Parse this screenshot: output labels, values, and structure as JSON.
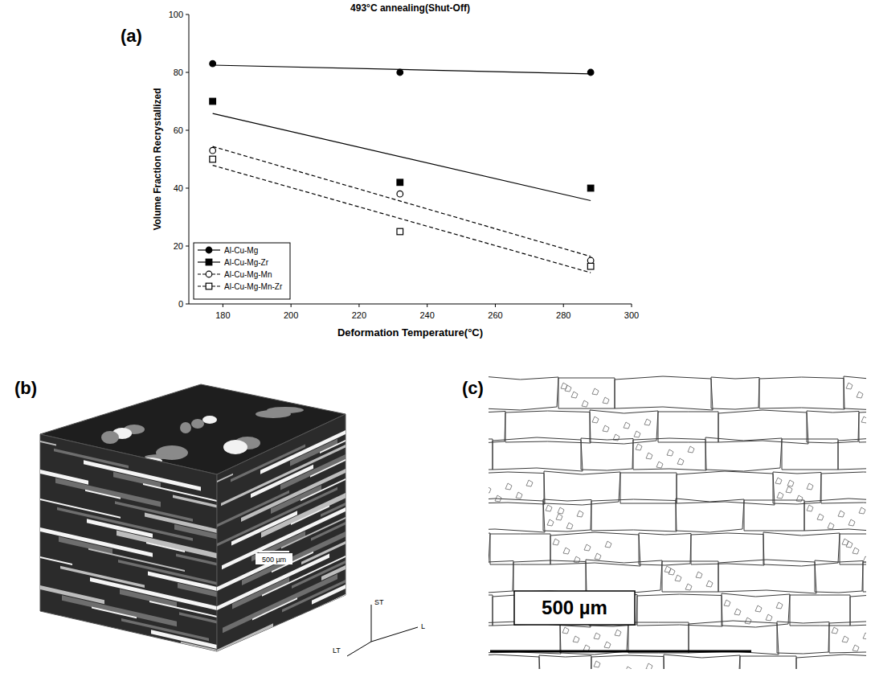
{
  "chart_data": {
    "type": "scatter",
    "title": "493°C annealing(Shut-Off)",
    "x_label": "Deformation Temperature(°C)",
    "y_label": "Volume Fraction Recrystallized",
    "x": [
      177,
      232,
      288
    ],
    "xlim": [
      170,
      300
    ],
    "xticks": [
      180,
      200,
      220,
      240,
      260,
      280,
      300
    ],
    "ylim": [
      0,
      100
    ],
    "yticks": [
      0,
      20,
      40,
      60,
      80,
      100
    ],
    "grid": false,
    "legend": "lower left",
    "series": [
      {
        "name": "Al-Cu-Mg",
        "color": "#000000",
        "marker": "filled-circle",
        "line_style": "solid",
        "values": [
          83,
          80,
          80
        ],
        "fit": [
          82.5,
          79.5
        ]
      },
      {
        "name": "Al-Cu-Mg-Zr",
        "color": "#000000",
        "marker": "filled-square",
        "line_style": "solid",
        "values": [
          70,
          42,
          40
        ],
        "fit": [
          65.8,
          35.7
        ]
      },
      {
        "name": "Al-Cu-Mg-Mn",
        "color": "#000000",
        "marker": "open-circle",
        "line_style": "dashed",
        "values": [
          53,
          38,
          15
        ],
        "fit": [
          54.4,
          16.4
        ]
      },
      {
        "name": "Al-Cu-Mg-Mn-Zr",
        "color": "#000000",
        "marker": "open-square",
        "line_style": "dashed",
        "values": [
          50,
          25,
          13
        ],
        "fit": [
          47.9,
          10.8
        ]
      }
    ]
  },
  "panels": [
    {
      "label": "(a)"
    },
    {
      "label": "(b)",
      "scale_bar": "500 µm",
      "axes": [
        "ST",
        "LT",
        "L"
      ]
    },
    {
      "label": "(c)",
      "scale_bar": "500 µm"
    }
  ]
}
